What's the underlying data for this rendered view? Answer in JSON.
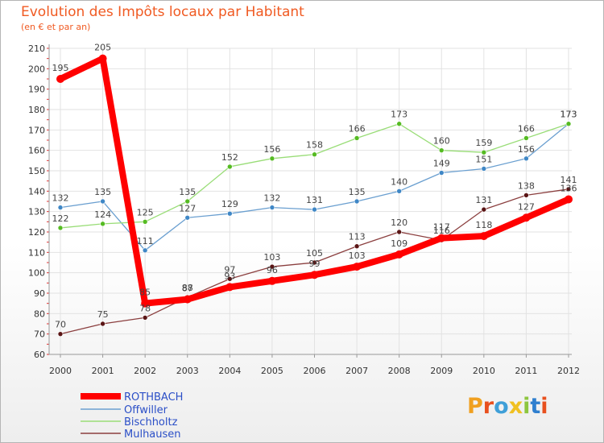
{
  "chart_data": {
    "type": "line",
    "title": "Evolution des Impôts locaux par Habitant",
    "subtitle": "(en € et par an)",
    "x": [
      "2000",
      "2001",
      "2002",
      "2003",
      "2004",
      "2005",
      "2006",
      "2007",
      "2008",
      "2009",
      "2010",
      "2011",
      "2012"
    ],
    "ylim": [
      60,
      210
    ],
    "yticks": [
      60,
      70,
      80,
      90,
      100,
      110,
      120,
      130,
      140,
      150,
      160,
      170,
      180,
      190,
      200,
      210
    ],
    "series": [
      {
        "name": "ROTHBACH",
        "color": "#ff0000",
        "marker": "#ff0000",
        "values": [
          195,
          205,
          85,
          87,
          93,
          96,
          99,
          103,
          109,
          117,
          118,
          127,
          136
        ],
        "labels": [
          "195",
          "205",
          "85",
          "87",
          "93",
          "96",
          "99",
          "103",
          "109",
          "117",
          "118",
          "127",
          "136"
        ]
      },
      {
        "name": "Offwiller",
        "color": "#6a9fd0",
        "marker": "#3f87c6",
        "values": [
          132,
          135,
          111,
          127,
          129,
          132,
          131,
          135,
          140,
          149,
          151,
          156,
          173
        ],
        "labels": [
          "132",
          "135",
          "111",
          "127",
          "129",
          "132",
          "131",
          "135",
          "140",
          "149",
          "151",
          "156",
          "173"
        ]
      },
      {
        "name": "Bischholtz",
        "color": "#99dd77",
        "marker": "#55bb22",
        "values": [
          122,
          124,
          125,
          135,
          152,
          156,
          158,
          166,
          173,
          160,
          159,
          166,
          173
        ],
        "labels": [
          "122",
          "124",
          "125",
          "135",
          "152",
          "156",
          "158",
          "166",
          "173",
          "160",
          "159",
          "166",
          "173"
        ]
      },
      {
        "name": "Mulhausen",
        "color": "#8b3f3f",
        "marker": "#5a1515",
        "values": [
          70,
          75,
          78,
          88,
          97,
          103,
          105,
          113,
          120,
          116,
          131,
          138,
          141
        ],
        "labels": [
          "70",
          "75",
          "78",
          "88",
          "97",
          "103",
          "105",
          "113",
          "120",
          "116",
          "131",
          "138",
          "141"
        ]
      }
    ]
  },
  "legend_colors": {
    "text": "#2b4fc7"
  },
  "logo": {
    "letters": [
      "P",
      "r",
      "o",
      "x",
      "i",
      "t",
      "i"
    ],
    "colors": [
      "#f0a020",
      "#e8501e",
      "#3f9fd8",
      "#f0c020",
      "#8dc63f",
      "#2f7fcf",
      "#e8501e"
    ]
  }
}
